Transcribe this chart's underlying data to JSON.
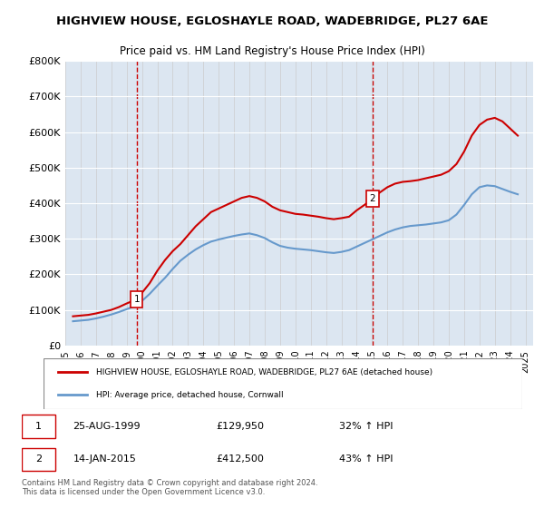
{
  "title1": "HIGHVIEW HOUSE, EGLOSHAYLE ROAD, WADEBRIDGE, PL27 6AE",
  "title2": "Price paid vs. HM Land Registry's House Price Index (HPI)",
  "legend_line1": "HIGHVIEW HOUSE, EGLOSHAYLE ROAD, WADEBRIDGE, PL27 6AE (detached house)",
  "legend_line2": "HPI: Average price, detached house, Cornwall",
  "footnote": "Contains HM Land Registry data © Crown copyright and database right 2024.\nThis data is licensed under the Open Government Licence v3.0.",
  "marker1_label": "1",
  "marker1_date": "25-AUG-1999",
  "marker1_price": "£129,950",
  "marker1_hpi": "32% ↑ HPI",
  "marker1_year": 1999.65,
  "marker1_value": 129950,
  "marker2_label": "2",
  "marker2_date": "14-JAN-2015",
  "marker2_price": "£412,500",
  "marker2_hpi": "43% ↑ HPI",
  "marker2_year": 2015.04,
  "marker2_value": 412500,
  "line_color_red": "#cc0000",
  "line_color_blue": "#6699cc",
  "background_color": "#dce6f1",
  "plot_bg_color": "#dce6f1",
  "ylim": [
    0,
    800000
  ],
  "xlim_start": 1995,
  "xlim_end": 2025.5,
  "ylabel_ticks": [
    0,
    100000,
    200000,
    300000,
    400000,
    500000,
    600000,
    700000,
    800000
  ],
  "ylabel_labels": [
    "£0",
    "£100K",
    "£200K",
    "£300K",
    "£400K",
    "£500K",
    "£600K",
    "£700K",
    "£800K"
  ],
  "red_x": [
    1995.5,
    1996.0,
    1996.5,
    1997.0,
    1997.5,
    1998.0,
    1998.5,
    1999.0,
    1999.65,
    2000.0,
    2000.5,
    2001.0,
    2001.5,
    2002.0,
    2002.5,
    2003.0,
    2003.5,
    2004.0,
    2004.5,
    2005.0,
    2005.5,
    2006.0,
    2006.5,
    2007.0,
    2007.5,
    2008.0,
    2008.5,
    2009.0,
    2009.5,
    2010.0,
    2010.5,
    2011.0,
    2011.5,
    2012.0,
    2012.5,
    2013.0,
    2013.5,
    2014.0,
    2014.5,
    2015.04,
    2015.5,
    2016.0,
    2016.5,
    2017.0,
    2017.5,
    2018.0,
    2018.5,
    2019.0,
    2019.5,
    2020.0,
    2020.5,
    2021.0,
    2021.5,
    2022.0,
    2022.5,
    2023.0,
    2023.5,
    2024.0,
    2024.5
  ],
  "red_y": [
    82000,
    84000,
    86000,
    90000,
    95000,
    100000,
    108000,
    118000,
    129950,
    148000,
    175000,
    210000,
    240000,
    265000,
    285000,
    310000,
    335000,
    355000,
    375000,
    385000,
    395000,
    405000,
    415000,
    420000,
    415000,
    405000,
    390000,
    380000,
    375000,
    370000,
    368000,
    365000,
    362000,
    358000,
    355000,
    358000,
    362000,
    380000,
    395000,
    412500,
    430000,
    445000,
    455000,
    460000,
    462000,
    465000,
    470000,
    475000,
    480000,
    490000,
    510000,
    545000,
    590000,
    620000,
    635000,
    640000,
    630000,
    610000,
    590000
  ],
  "blue_x": [
    1995.5,
    1996.0,
    1996.5,
    1997.0,
    1997.5,
    1998.0,
    1998.5,
    1999.0,
    1999.5,
    2000.0,
    2000.5,
    2001.0,
    2001.5,
    2002.0,
    2002.5,
    2003.0,
    2003.5,
    2004.0,
    2004.5,
    2005.0,
    2005.5,
    2006.0,
    2006.5,
    2007.0,
    2007.5,
    2008.0,
    2008.5,
    2009.0,
    2009.5,
    2010.0,
    2010.5,
    2011.0,
    2011.5,
    2012.0,
    2012.5,
    2013.0,
    2013.5,
    2014.0,
    2014.5,
    2015.0,
    2015.5,
    2016.0,
    2016.5,
    2017.0,
    2017.5,
    2018.0,
    2018.5,
    2019.0,
    2019.5,
    2020.0,
    2020.5,
    2021.0,
    2021.5,
    2022.0,
    2022.5,
    2023.0,
    2023.5,
    2024.0,
    2024.5
  ],
  "blue_y": [
    68000,
    70000,
    72000,
    76000,
    81000,
    87000,
    94000,
    102000,
    110000,
    125000,
    145000,
    168000,
    190000,
    215000,
    238000,
    255000,
    270000,
    282000,
    292000,
    298000,
    303000,
    308000,
    312000,
    315000,
    310000,
    302000,
    290000,
    280000,
    275000,
    272000,
    270000,
    268000,
    265000,
    262000,
    260000,
    263000,
    268000,
    278000,
    288000,
    298000,
    308000,
    318000,
    326000,
    332000,
    336000,
    338000,
    340000,
    343000,
    346000,
    352000,
    368000,
    395000,
    425000,
    445000,
    450000,
    448000,
    440000,
    432000,
    425000
  ]
}
